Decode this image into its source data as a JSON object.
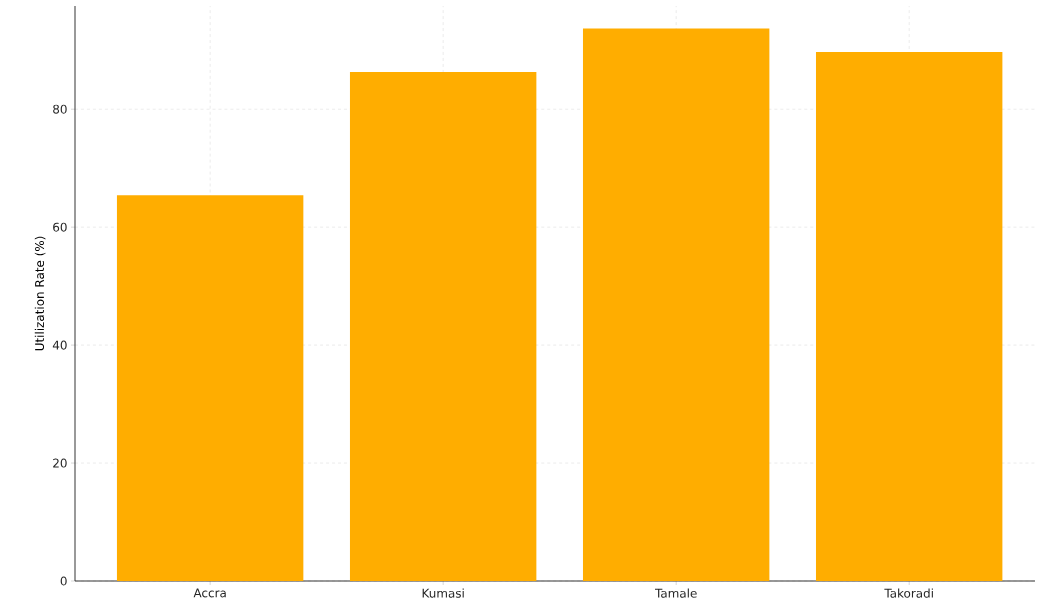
{
  "chart_data": {
    "type": "bar",
    "ylabel": "Utilization Rate (%)",
    "categories": [
      "Accra",
      "Kumasi",
      "Tamale",
      "Takoradi"
    ],
    "values": [
      65.4,
      86.3,
      93.7,
      89.7
    ],
    "color": "#ffad00",
    "ylim": [
      0,
      97.5
    ],
    "yticks": [
      0,
      20,
      40,
      60,
      80
    ],
    "grid": true
  }
}
